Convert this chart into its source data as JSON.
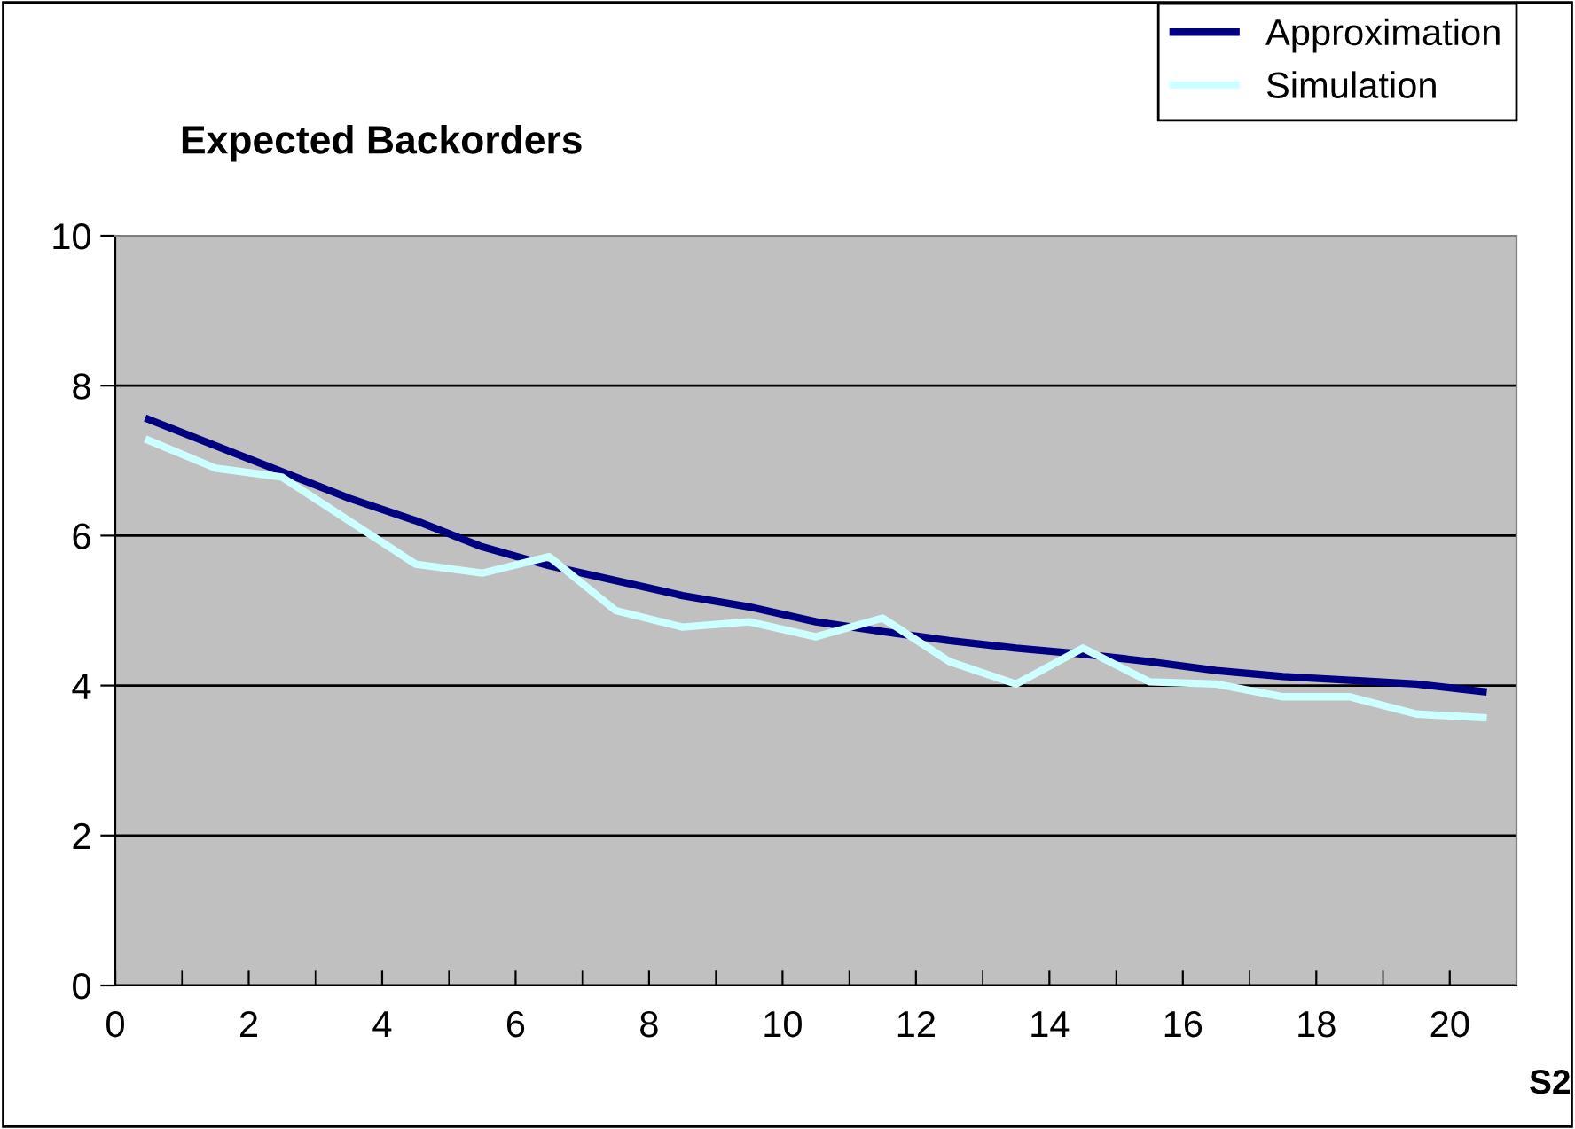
{
  "chart_data": {
    "type": "line",
    "title": "Expected Backorders",
    "xlabel": "S2",
    "x": [
      0.5,
      1.5,
      2.5,
      3.5,
      4.5,
      5.5,
      6.5,
      7.5,
      8.5,
      9.5,
      10.5,
      11.5,
      12.5,
      13.5,
      14.5,
      15.5,
      16.5,
      17.5,
      18.5,
      19.5,
      20.5
    ],
    "series": [
      {
        "name": "Approximation",
        "color": "#000080",
        "values": [
          7.55,
          7.2,
          6.85,
          6.5,
          6.2,
          5.85,
          5.6,
          5.4,
          5.2,
          5.05,
          4.85,
          4.72,
          4.6,
          4.5,
          4.42,
          4.32,
          4.2,
          4.12,
          4.07,
          4.02,
          3.92
        ]
      },
      {
        "name": "Simulation",
        "color": "#ccffff",
        "values": [
          7.27,
          6.9,
          6.78,
          6.2,
          5.62,
          5.5,
          5.72,
          5.0,
          4.78,
          4.85,
          4.65,
          4.9,
          4.32,
          4.02,
          4.5,
          4.05,
          4.02,
          3.85,
          3.85,
          3.62,
          3.57
        ]
      }
    ],
    "xlim": [
      0,
      21
    ],
    "xticks": [
      0,
      2,
      4,
      6,
      8,
      10,
      12,
      14,
      16,
      18,
      20
    ],
    "ylim": [
      0,
      10
    ],
    "yticks": [
      0,
      2,
      4,
      6,
      8,
      10
    ],
    "grid": "y",
    "legend": "top right",
    "marker": "none",
    "line_style": "solid"
  }
}
